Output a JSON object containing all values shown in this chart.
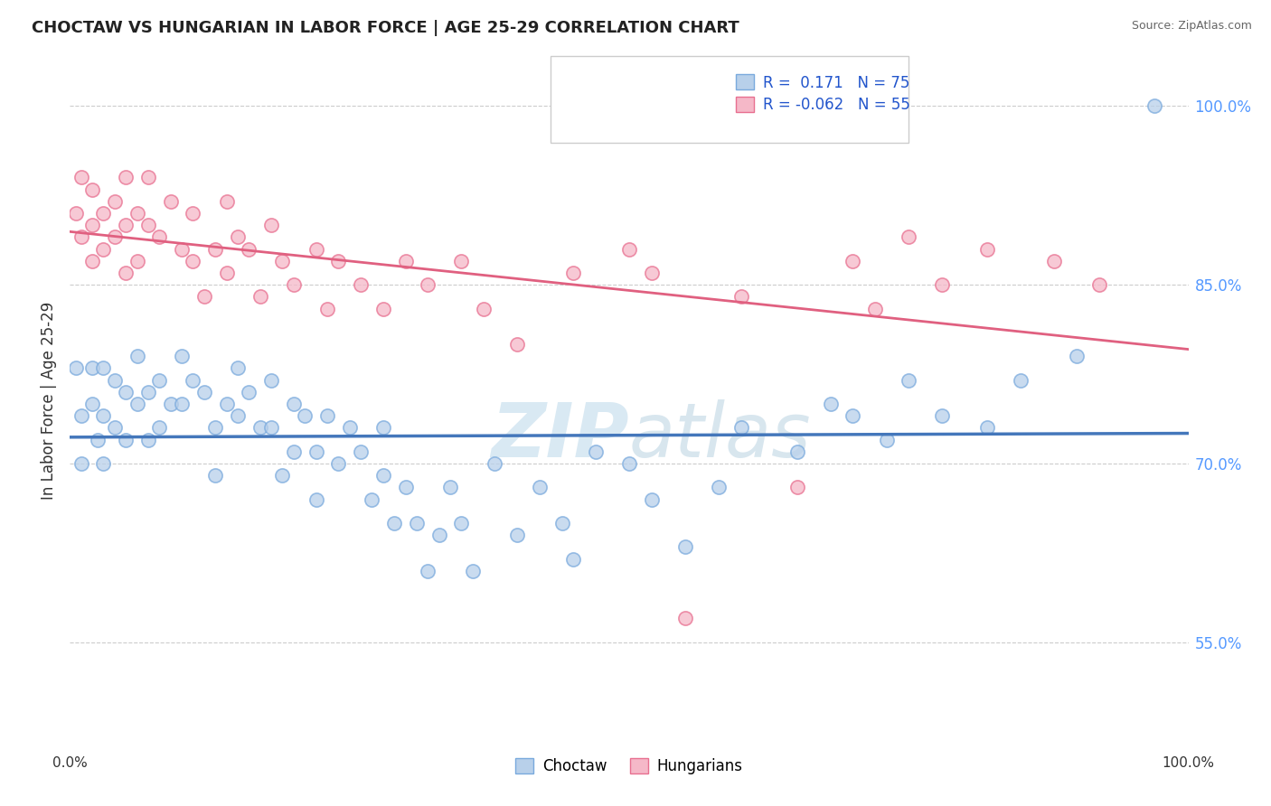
{
  "title": "CHOCTAW VS HUNGARIAN IN LABOR FORCE | AGE 25-29 CORRELATION CHART",
  "source": "Source: ZipAtlas.com",
  "ylabel": "In Labor Force | Age 25-29",
  "ytick_values": [
    0.55,
    0.7,
    0.85,
    1.0
  ],
  "ytick_labels": [
    "55.0%",
    "70.0%",
    "85.0%",
    "100.0%"
  ],
  "xlim": [
    0.0,
    1.0
  ],
  "ylim": [
    0.46,
    1.045
  ],
  "legend_choctaw": "Choctaw",
  "legend_hungarian": "Hungarians",
  "R_choctaw": 0.171,
  "N_choctaw": 75,
  "R_hungarian": -0.062,
  "N_hungarian": 55,
  "choctaw_fill": "#b8d0ea",
  "choctaw_edge": "#7aaadd",
  "hungarian_fill": "#f5b8c8",
  "hungarian_edge": "#e87090",
  "choctaw_line_color": "#4477bb",
  "hungarian_line_color": "#e06080",
  "watermark_color": "#d0e4f0",
  "background_color": "#ffffff",
  "grid_color": "#cccccc",
  "title_color": "#222222",
  "source_color": "#666666",
  "legend_text_color": "#2255cc",
  "tick_color": "#5599ff",
  "choctaw_x": [
    0.005,
    0.01,
    0.01,
    0.02,
    0.02,
    0.025,
    0.03,
    0.03,
    0.03,
    0.04,
    0.04,
    0.05,
    0.05,
    0.06,
    0.06,
    0.07,
    0.07,
    0.08,
    0.08,
    0.09,
    0.1,
    0.1,
    0.11,
    0.12,
    0.13,
    0.13,
    0.14,
    0.15,
    0.15,
    0.16,
    0.17,
    0.18,
    0.18,
    0.19,
    0.2,
    0.2,
    0.21,
    0.22,
    0.22,
    0.23,
    0.24,
    0.25,
    0.26,
    0.27,
    0.28,
    0.28,
    0.29,
    0.3,
    0.31,
    0.32,
    0.33,
    0.34,
    0.35,
    0.36,
    0.38,
    0.4,
    0.42,
    0.44,
    0.45,
    0.47,
    0.5,
    0.52,
    0.55,
    0.58,
    0.6,
    0.65,
    0.68,
    0.7,
    0.73,
    0.75,
    0.78,
    0.82,
    0.85,
    0.9,
    0.97
  ],
  "choctaw_y": [
    0.78,
    0.74,
    0.7,
    0.78,
    0.75,
    0.72,
    0.78,
    0.74,
    0.7,
    0.77,
    0.73,
    0.76,
    0.72,
    0.79,
    0.75,
    0.76,
    0.72,
    0.77,
    0.73,
    0.75,
    0.79,
    0.75,
    0.77,
    0.76,
    0.73,
    0.69,
    0.75,
    0.78,
    0.74,
    0.76,
    0.73,
    0.77,
    0.73,
    0.69,
    0.75,
    0.71,
    0.74,
    0.71,
    0.67,
    0.74,
    0.7,
    0.73,
    0.71,
    0.67,
    0.73,
    0.69,
    0.65,
    0.68,
    0.65,
    0.61,
    0.64,
    0.68,
    0.65,
    0.61,
    0.7,
    0.64,
    0.68,
    0.65,
    0.62,
    0.71,
    0.7,
    0.67,
    0.63,
    0.68,
    0.73,
    0.71,
    0.75,
    0.74,
    0.72,
    0.77,
    0.74,
    0.73,
    0.77,
    0.79,
    1.0
  ],
  "hungarian_x": [
    0.005,
    0.01,
    0.01,
    0.02,
    0.02,
    0.02,
    0.03,
    0.03,
    0.04,
    0.04,
    0.05,
    0.05,
    0.05,
    0.06,
    0.06,
    0.07,
    0.07,
    0.08,
    0.09,
    0.1,
    0.11,
    0.11,
    0.12,
    0.13,
    0.14,
    0.14,
    0.15,
    0.16,
    0.17,
    0.18,
    0.19,
    0.2,
    0.22,
    0.23,
    0.24,
    0.26,
    0.28,
    0.3,
    0.32,
    0.35,
    0.37,
    0.4,
    0.45,
    0.5,
    0.52,
    0.55,
    0.6,
    0.65,
    0.7,
    0.72,
    0.75,
    0.78,
    0.82,
    0.88,
    0.92
  ],
  "hungarian_y": [
    0.91,
    0.89,
    0.94,
    0.9,
    0.87,
    0.93,
    0.91,
    0.88,
    0.92,
    0.89,
    0.86,
    0.9,
    0.94,
    0.91,
    0.87,
    0.9,
    0.94,
    0.89,
    0.92,
    0.88,
    0.91,
    0.87,
    0.84,
    0.88,
    0.92,
    0.86,
    0.89,
    0.88,
    0.84,
    0.9,
    0.87,
    0.85,
    0.88,
    0.83,
    0.87,
    0.85,
    0.83,
    0.87,
    0.85,
    0.87,
    0.83,
    0.8,
    0.86,
    0.88,
    0.86,
    0.57,
    0.84,
    0.68,
    0.87,
    0.83,
    0.89,
    0.85,
    0.88,
    0.87,
    0.85
  ]
}
